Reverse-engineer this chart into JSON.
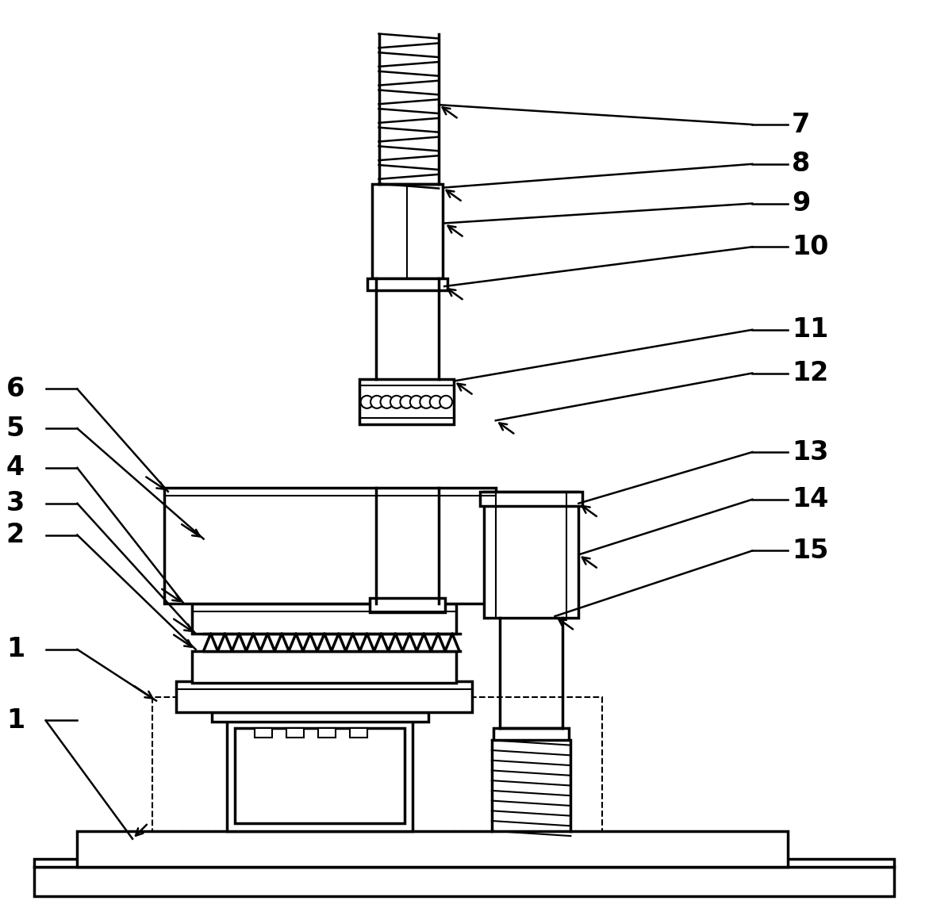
{
  "fig_width": 11.71,
  "fig_height": 11.55,
  "bg_color": "#ffffff",
  "line_color": "#000000",
  "lw": 2.5,
  "tlw": 1.5
}
